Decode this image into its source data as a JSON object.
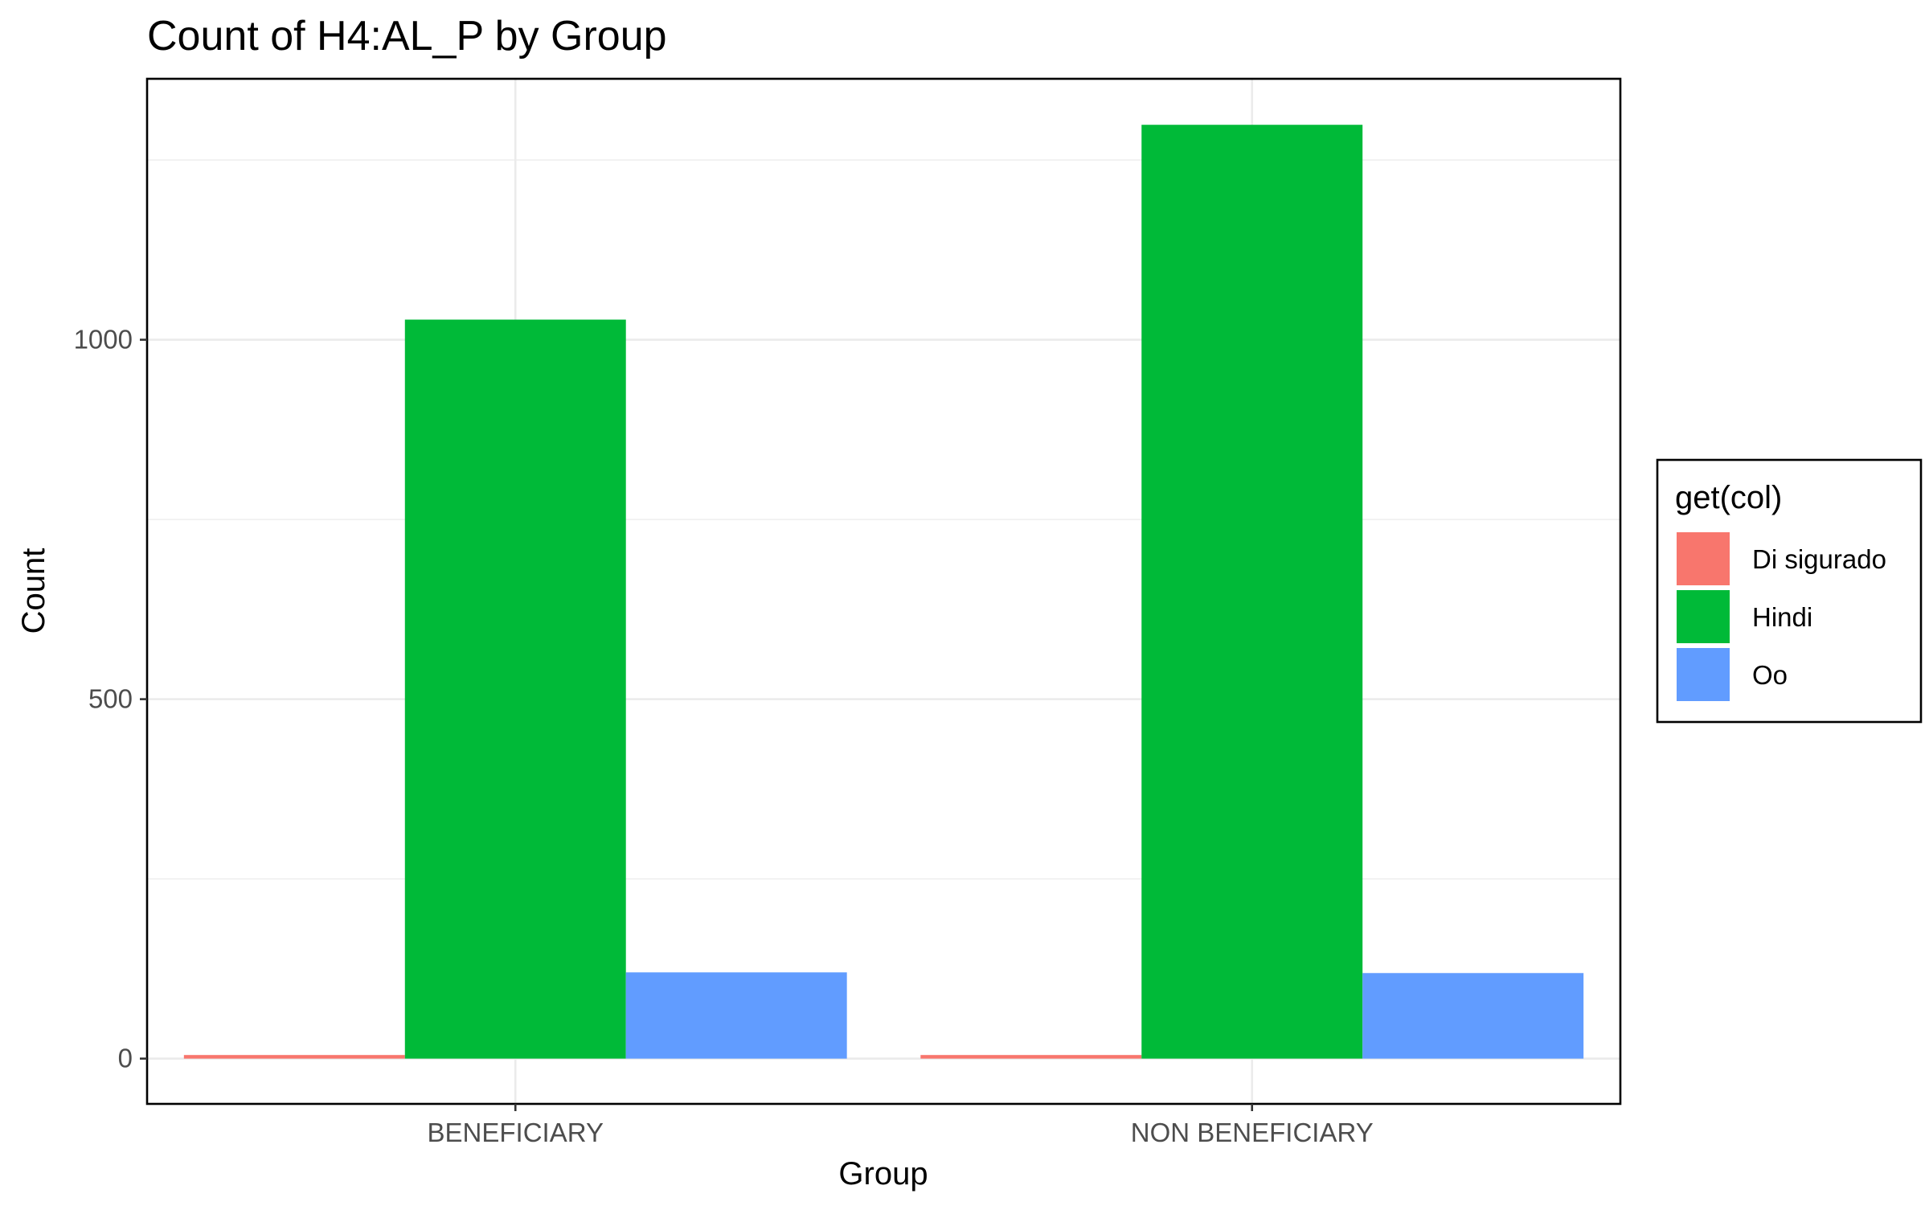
{
  "chart_data": {
    "type": "bar",
    "title": "Count of H4:AL_P by Group",
    "xlabel": "Group",
    "ylabel": "Count",
    "categories": [
      "BENEFICIARY",
      "NON BENEFICIARY"
    ],
    "series": [
      {
        "name": "Di sigurado",
        "values": [
          5,
          5
        ],
        "color": "#F8766D"
      },
      {
        "name": "Hindi",
        "values": [
          1028,
          1299
        ],
        "color": "#00BA38"
      },
      {
        "name": "Oo",
        "values": [
          120,
          119
        ],
        "color": "#619CFF"
      }
    ],
    "yticks": [
      0,
      500,
      1000
    ],
    "ylim": [
      -63,
      1363
    ],
    "grid": true,
    "legend": {
      "title": "get(col)",
      "position": "right"
    }
  }
}
